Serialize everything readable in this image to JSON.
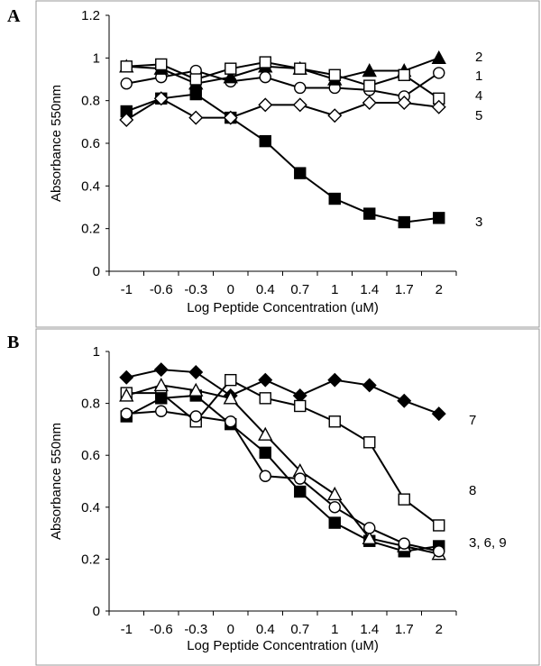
{
  "chart_data": [
    {
      "type": "line",
      "panel_label": "A",
      "xlabel": "Log Peptide Concentration (uM)",
      "ylabel": "Absorbance 550nm",
      "ylim": [
        0,
        1.2
      ],
      "yticks": [
        "0",
        "0.2",
        "0.4",
        "0.6",
        "0.8",
        "1",
        "1.2"
      ],
      "categories": [
        "-1",
        "-0.6",
        "-0.3",
        "0",
        "0.4",
        "0.7",
        "1",
        "1.4",
        "1.7",
        "2"
      ],
      "series": [
        {
          "name": "1",
          "marker": "circle-open",
          "values": [
            0.88,
            0.91,
            0.94,
            0.89,
            0.91,
            0.86,
            0.86,
            0.85,
            0.82,
            0.93
          ]
        },
        {
          "name": "2",
          "marker": "triangle-filled",
          "values": [
            0.96,
            0.95,
            0.88,
            0.91,
            0.96,
            0.95,
            0.9,
            0.94,
            0.94,
            1.0
          ]
        },
        {
          "name": "3",
          "marker": "square-filled",
          "values": [
            0.75,
            0.81,
            0.83,
            0.72,
            0.61,
            0.46,
            0.34,
            0.27,
            0.23,
            0.25
          ]
        },
        {
          "name": "4",
          "marker": "square-open",
          "values": [
            0.96,
            0.97,
            0.9,
            0.95,
            0.98,
            0.95,
            0.92,
            0.87,
            0.92,
            0.81
          ]
        },
        {
          "name": "5",
          "marker": "diamond-open",
          "values": [
            0.71,
            0.81,
            0.72,
            0.72,
            0.78,
            0.78,
            0.73,
            0.79,
            0.79,
            0.77
          ]
        }
      ],
      "end_labels": [
        {
          "text": "2",
          "series": 1
        },
        {
          "text": "1",
          "series": 0
        },
        {
          "text": "4",
          "series": 3
        },
        {
          "text": "5",
          "series": 4
        },
        {
          "text": "3",
          "series": 2
        }
      ]
    },
    {
      "type": "line",
      "panel_label": "B",
      "xlabel": "Log Peptide Concentration (uM)",
      "ylabel": "Absorbance 550nm",
      "ylim": [
        0,
        1
      ],
      "yticks": [
        "0",
        "0.2",
        "0.4",
        "0.6",
        "0.8",
        "1"
      ],
      "categories": [
        "-1",
        "-0.6",
        "-0.3",
        "0",
        "0.4",
        "0.7",
        "1",
        "1.4",
        "1.7",
        "2"
      ],
      "series": [
        {
          "name": "7",
          "marker": "diamond-filled",
          "values": [
            0.9,
            0.93,
            0.92,
            0.83,
            0.89,
            0.83,
            0.89,
            0.87,
            0.81,
            0.76
          ]
        },
        {
          "name": "8",
          "marker": "square-open",
          "values": [
            0.84,
            0.84,
            0.73,
            0.89,
            0.82,
            0.79,
            0.73,
            0.65,
            0.43,
            0.33
          ]
        },
        {
          "name": "3",
          "marker": "square-filled",
          "values": [
            0.75,
            0.82,
            0.83,
            0.72,
            0.61,
            0.46,
            0.34,
            0.27,
            0.23,
            0.25
          ]
        },
        {
          "name": "6",
          "marker": "triangle-open",
          "values": [
            0.83,
            0.87,
            0.85,
            0.82,
            0.68,
            0.54,
            0.45,
            0.28,
            0.25,
            0.22
          ]
        },
        {
          "name": "9",
          "marker": "circle-open",
          "values": [
            0.76,
            0.77,
            0.75,
            0.73,
            0.52,
            0.51,
            0.4,
            0.32,
            0.26,
            0.23
          ]
        }
      ],
      "end_labels": [
        {
          "text": "7",
          "series": 0
        },
        {
          "text": "8",
          "series": 1
        },
        {
          "text": "3, 6, 9",
          "series": 2
        }
      ]
    }
  ]
}
